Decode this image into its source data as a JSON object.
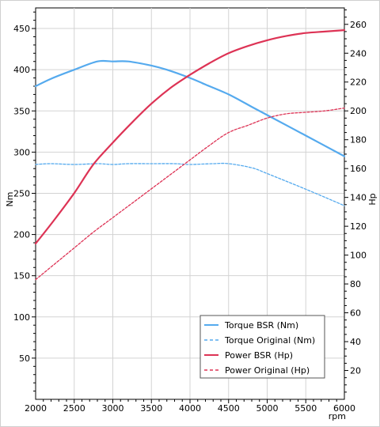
{
  "chart_data": {
    "type": "line",
    "xlabel": "rpm",
    "ylabel_left": "Nm",
    "ylabel_right": "Hp",
    "xlim": [
      2000,
      6000
    ],
    "ylim_left": [
      0,
      475
    ],
    "ylim_right": [
      0,
      271.4
    ],
    "x_ticks": [
      "2000",
      "2500",
      "3000",
      "3500",
      "4000",
      "4500",
      "5000",
      "5500",
      "6000"
    ],
    "y_left_ticks": [
      "50",
      "100",
      "150",
      "200",
      "250",
      "300",
      "350",
      "400",
      "450"
    ],
    "y_right_ticks": [
      "20",
      "40",
      "60",
      "80",
      "100",
      "120",
      "140",
      "160",
      "180",
      "200",
      "220",
      "240",
      "260"
    ],
    "grid": true,
    "legend_position": "bottom-right",
    "series": [
      {
        "name": "Torque BSR (Nm)",
        "axis": "left",
        "style": "solid",
        "color": "#55aaee",
        "x": [
          2000,
          2200,
          2500,
          2800,
          3000,
          3200,
          3500,
          3700,
          4000,
          4200,
          4500,
          4800,
          5000,
          5500,
          6000
        ],
        "y": [
          380,
          389,
          400,
          410,
          410,
          410,
          405,
          400,
          390,
          382,
          370,
          355,
          345,
          320,
          295
        ]
      },
      {
        "name": "Torque Original (Nm)",
        "axis": "left",
        "style": "dashed",
        "color": "#55aaee",
        "x": [
          2000,
          2200,
          2500,
          2800,
          3000,
          3200,
          3500,
          3800,
          4000,
          4300,
          4500,
          4800,
          5000,
          5500,
          6000
        ],
        "y": [
          285,
          286,
          285,
          286,
          285,
          286,
          286,
          286,
          285,
          286,
          286,
          281,
          274,
          255,
          235
        ]
      },
      {
        "name": "Power BSR (Hp)",
        "axis": "right",
        "style": "solid",
        "color": "#dd3355",
        "x": [
          2000,
          2250,
          2500,
          2750,
          3000,
          3250,
          3500,
          3750,
          4000,
          4250,
          4500,
          4750,
          5000,
          5250,
          5500,
          5750,
          6000
        ],
        "y": [
          108,
          125,
          143,
          163,
          178,
          192,
          205,
          216,
          225,
          233,
          240,
          245,
          249,
          252,
          254,
          255,
          256
        ]
      },
      {
        "name": "Power Original (Hp)",
        "axis": "right",
        "style": "dashed",
        "color": "#dd3355",
        "x": [
          2000,
          2250,
          2500,
          2750,
          3000,
          3250,
          3500,
          3750,
          4000,
          4250,
          4500,
          4750,
          5000,
          5250,
          5500,
          5750,
          6000
        ],
        "y": [
          83,
          94,
          105,
          116,
          126,
          136,
          146,
          156,
          166,
          176,
          185,
          190,
          195,
          198,
          199,
          200,
          202
        ]
      }
    ]
  }
}
